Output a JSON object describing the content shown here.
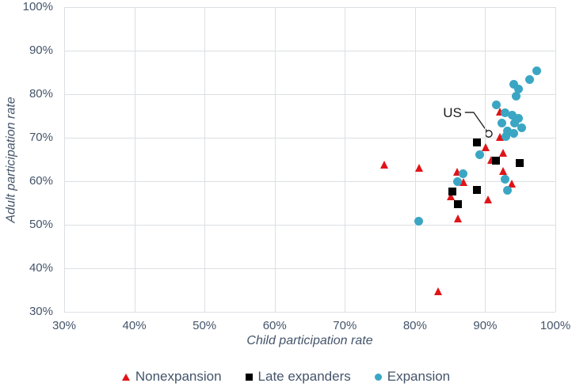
{
  "figure": {
    "background": "#ffffff",
    "text_color": "#44546a",
    "grid_color": "#dcdfe3",
    "annotation_text_color": "#1a1a1a"
  },
  "chart_data": {
    "type": "scatter",
    "title": "",
    "xlabel": "Child participation rate",
    "ylabel": "Adult participation rate",
    "xlim": [
      30,
      100
    ],
    "ylim": [
      30,
      100
    ],
    "grid": true,
    "legend_position": "bottom",
    "x_ticks": {
      "values": [
        30,
        40,
        50,
        60,
        70,
        80,
        90,
        100
      ],
      "labels": [
        "30%",
        "40%",
        "50%",
        "60%",
        "70%",
        "80%",
        "90%",
        "100%"
      ]
    },
    "y_ticks": {
      "values": [
        30,
        40,
        50,
        60,
        70,
        80,
        90,
        100
      ],
      "labels": [
        "30%",
        "40%",
        "50%",
        "60%",
        "70%",
        "80%",
        "90%",
        "100%"
      ]
    },
    "series": [
      {
        "name": "Nonexpansion",
        "marker": "triangle",
        "color": "#e01418",
        "points": [
          [
            75.7,
            63.8
          ],
          [
            80.6,
            63.1
          ],
          [
            83.3,
            34.7
          ],
          [
            85.1,
            56.5
          ],
          [
            86.0,
            62.2
          ],
          [
            86.2,
            51.5
          ],
          [
            87.0,
            59.8
          ],
          [
            90.1,
            67.8
          ],
          [
            90.5,
            55.8
          ],
          [
            90.9,
            64.9
          ],
          [
            92.1,
            76.0
          ],
          [
            92.1,
            70.2
          ],
          [
            92.6,
            66.5
          ],
          [
            92.6,
            62.4
          ],
          [
            93.9,
            59.5
          ]
        ]
      },
      {
        "name": "Late expanders",
        "marker": "square",
        "color": "#000000",
        "points": [
          [
            85.3,
            57.6
          ],
          [
            86.1,
            54.7
          ],
          [
            88.8,
            68.9
          ],
          [
            88.8,
            58.0
          ],
          [
            91.5,
            64.7
          ],
          [
            94.9,
            64.2
          ]
        ]
      },
      {
        "name": "Expansion",
        "marker": "circle",
        "color": "#3aa6c4",
        "points": [
          [
            80.5,
            50.8
          ],
          [
            86.1,
            59.9
          ],
          [
            86.9,
            61.7
          ],
          [
            89.2,
            66.1
          ],
          [
            91.6,
            77.6
          ],
          [
            92.4,
            73.4
          ],
          [
            92.8,
            75.8
          ],
          [
            92.8,
            60.5
          ],
          [
            92.9,
            70.3
          ],
          [
            93.2,
            71.5
          ],
          [
            93.2,
            57.9
          ],
          [
            93.8,
            75.2
          ],
          [
            94.1,
            82.3
          ],
          [
            94.1,
            71.0
          ],
          [
            94.2,
            73.3
          ],
          [
            94.4,
            79.6
          ],
          [
            94.7,
            81.2
          ],
          [
            94.8,
            74.5
          ],
          [
            95.2,
            72.3
          ],
          [
            96.3,
            83.4
          ],
          [
            97.3,
            85.4
          ]
        ]
      }
    ],
    "annotation": {
      "label": "US",
      "point": [
        90.5,
        70.9
      ],
      "marker": "open-circle"
    }
  }
}
